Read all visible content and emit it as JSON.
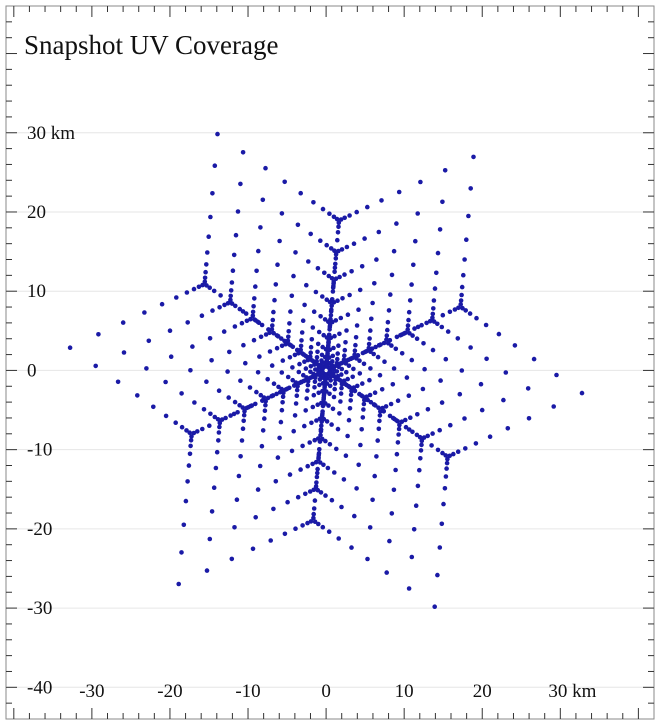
{
  "chart_data": {
    "type": "scatter",
    "title": "Snapshot UV Coverage",
    "x_ticks": [
      {
        "value": -30,
        "label": "-30"
      },
      {
        "value": -20,
        "label": "-20"
      },
      {
        "value": -10,
        "label": "-10"
      },
      {
        "value": 0,
        "label": "0"
      },
      {
        "value": 10,
        "label": "10"
      },
      {
        "value": 20,
        "label": "20"
      },
      {
        "value": 30,
        "label": "30 km"
      }
    ],
    "y_ticks": [
      {
        "value": 30,
        "label": "30 km"
      },
      {
        "value": 20,
        "label": "20"
      },
      {
        "value": 10,
        "label": "10"
      },
      {
        "value": 0,
        "label": "0"
      },
      {
        "value": -10,
        "label": "-10"
      },
      {
        "value": -20,
        "label": "-20"
      },
      {
        "value": -30,
        "label": "-30"
      },
      {
        "value": -40,
        "label": "-40"
      }
    ],
    "xlim": [
      -41,
      42
    ],
    "ylim": [
      -44,
      46
    ],
    "grid": "horizontal",
    "point_color": "#1a1aa6",
    "array_arms": [
      {
        "pa_deg": 5,
        "station_radii_km": [
          0.3,
          0.8,
          1.5,
          2.5,
          4,
          6,
          8.5,
          11.5,
          15,
          19
        ]
      },
      {
        "pa_deg": 125,
        "station_radii_km": [
          0.3,
          0.8,
          1.5,
          2.5,
          4,
          6,
          8.5,
          11.5,
          15,
          19
        ]
      },
      {
        "pa_deg": 245,
        "station_radii_km": [
          0.3,
          0.8,
          1.5,
          2.5,
          4,
          6,
          8.5,
          11.5,
          15,
          19
        ]
      }
    ]
  }
}
